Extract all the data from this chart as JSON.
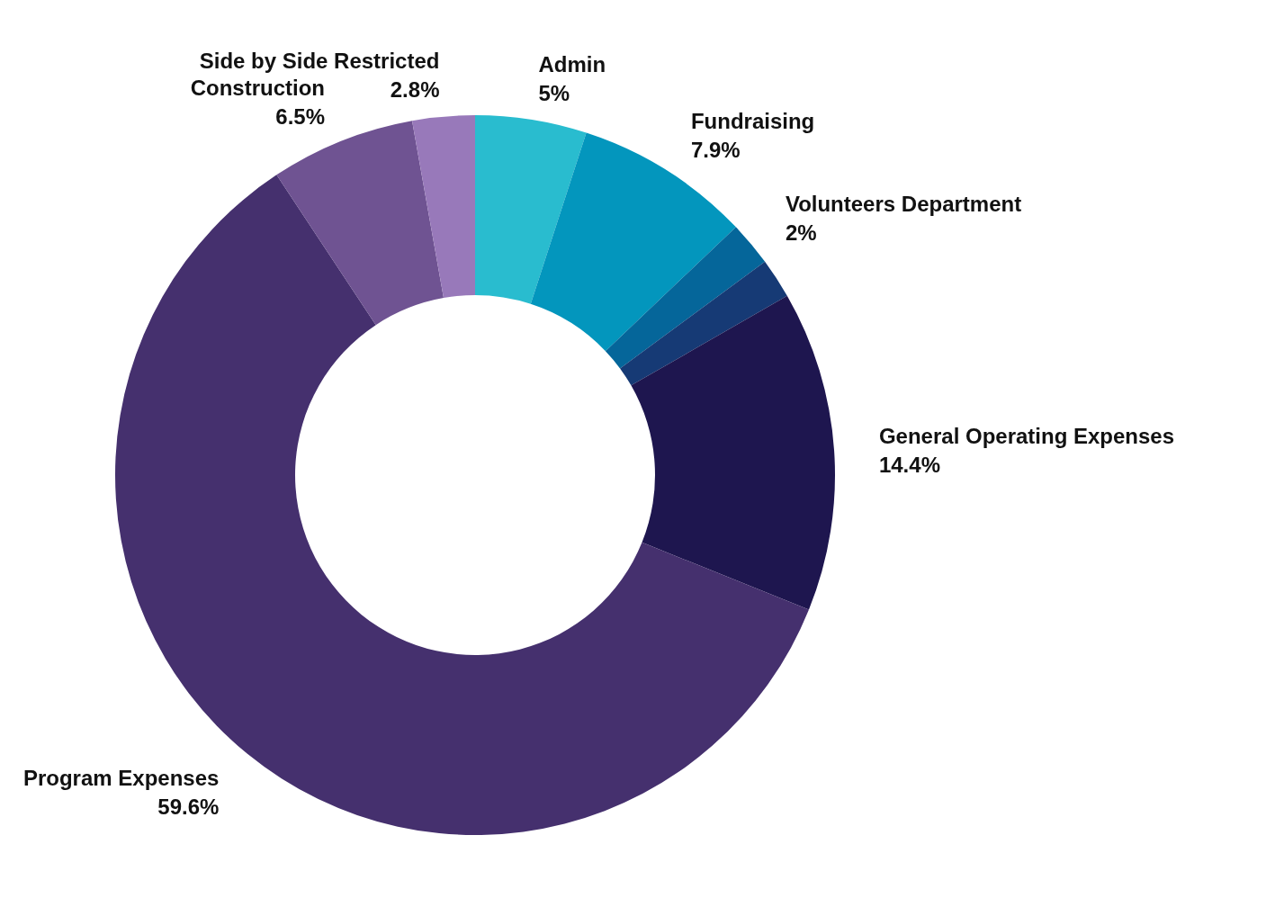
{
  "chart_data": {
    "type": "donut",
    "categories": [
      "Admin",
      "Fundraising",
      "Volunteers Department",
      null,
      "General Operating Expenses",
      "Program Expenses",
      "Construction",
      "Side by Side Restricted"
    ],
    "values": [
      5,
      7.9,
      2,
      1.8,
      14.4,
      59.6,
      6.5,
      2.8
    ],
    "value_labels": [
      "5%",
      "7.9%",
      "2%",
      null,
      "14.4%",
      "59.6%",
      "6.5%",
      "2.8%"
    ],
    "colors": [
      "#29bccf",
      "#0396bd",
      "#05669a",
      "#163a75",
      "#1e164f",
      "#45306e",
      "#6f5392",
      "#9879ba"
    ]
  }
}
